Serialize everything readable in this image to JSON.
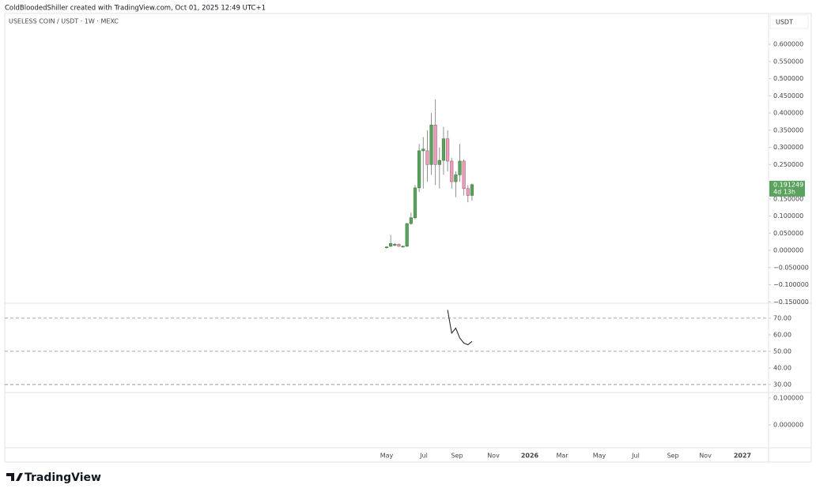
{
  "header": "ColdBloodedShiller created with TradingView.com, Oct 01, 2025 12:49 UTC+1",
  "logo": "TradingView",
  "chart_data": [
    {
      "type": "candlestick",
      "title": "USELESS COIN / USDT · 1W · MEXC",
      "currency": "USDT",
      "up_color": "#5aa25d",
      "down_color": "#e8a0b8",
      "series": [
        {
          "name": "open",
          "values": [
            0.008,
            0.012,
            0.015,
            0.018,
            0.01,
            0.012,
            0.078,
            0.095,
            0.182,
            0.29,
            0.29,
            0.25,
            0.365,
            0.25,
            0.262,
            0.325,
            0.26,
            0.2,
            0.22,
            0.26,
            0.18,
            0.16
          ]
        },
        {
          "name": "high",
          "values": [
            0.012,
            0.045,
            0.022,
            0.02,
            0.014,
            0.08,
            0.11,
            0.19,
            0.31,
            0.33,
            0.35,
            0.4,
            0.44,
            0.3,
            0.36,
            0.35,
            0.27,
            0.23,
            0.31,
            0.265,
            0.19,
            0.195
          ]
        },
        {
          "name": "low",
          "values": [
            0.005,
            0.01,
            0.012,
            0.01,
            0.008,
            0.01,
            0.075,
            0.09,
            0.17,
            0.18,
            0.2,
            0.22,
            0.19,
            0.18,
            0.22,
            0.23,
            0.18,
            0.155,
            0.2,
            0.16,
            0.14,
            0.145
          ]
        },
        {
          "name": "close",
          "values": [
            0.01,
            0.02,
            0.018,
            0.012,
            0.012,
            0.078,
            0.095,
            0.182,
            0.29,
            0.295,
            0.25,
            0.365,
            0.25,
            0.262,
            0.325,
            0.26,
            0.2,
            0.22,
            0.26,
            0.18,
            0.16,
            0.191249
          ]
        }
      ],
      "last_price": 0.191249,
      "countdown": "4d 13h",
      "ylim": [
        -0.154,
        0.69
      ],
      "yticks": [
        {
          "value": 0.6,
          "label": "0.600000"
        },
        {
          "value": 0.55,
          "label": "0.550000"
        },
        {
          "value": 0.5,
          "label": "0.500000"
        },
        {
          "value": 0.45,
          "label": "0.450000"
        },
        {
          "value": 0.4,
          "label": "0.400000"
        },
        {
          "value": 0.35,
          "label": "0.350000"
        },
        {
          "value": 0.3,
          "label": "0.300000"
        },
        {
          "value": 0.25,
          "label": "0.250000"
        },
        {
          "value": 0.15,
          "label": "0.150000"
        },
        {
          "value": 0.1,
          "label": "0.100000"
        },
        {
          "value": 0.05,
          "label": "0.050000"
        },
        {
          "value": 0,
          "label": "0.000000"
        },
        {
          "value": -0.05,
          "label": "−0.050000"
        },
        {
          "value": -0.1,
          "label": "−0.100000"
        },
        {
          "value": -0.15,
          "label": "−0.150000"
        }
      ],
      "xticks": [
        "May",
        "Jul",
        "Sep",
        "Nov",
        "2026",
        "Mar",
        "May",
        "Jul",
        "Sep",
        "Nov",
        "2027"
      ]
    },
    {
      "type": "line",
      "color": "#1e1e1e",
      "values": [
        null,
        null,
        null,
        null,
        null,
        null,
        null,
        null,
        null,
        null,
        null,
        null,
        null,
        null,
        null,
        75,
        61,
        64,
        58,
        55,
        54,
        56
      ],
      "levels": [
        70,
        50,
        30
      ],
      "ylim": [
        25.2,
        79
      ],
      "yticks": [
        {
          "value": 70,
          "label": "70.00"
        },
        {
          "value": 60,
          "label": "60.00"
        },
        {
          "value": 50,
          "label": "50.00"
        },
        {
          "value": 40,
          "label": "40.00"
        },
        {
          "value": 30,
          "label": "30.00"
        }
      ]
    },
    {
      "type": "empty",
      "ylim": [
        -0.085,
        0.12
      ],
      "yticks": [
        {
          "value": 0.1,
          "label": "0.100000"
        },
        {
          "value": 0,
          "label": "0.000000"
        }
      ]
    }
  ]
}
